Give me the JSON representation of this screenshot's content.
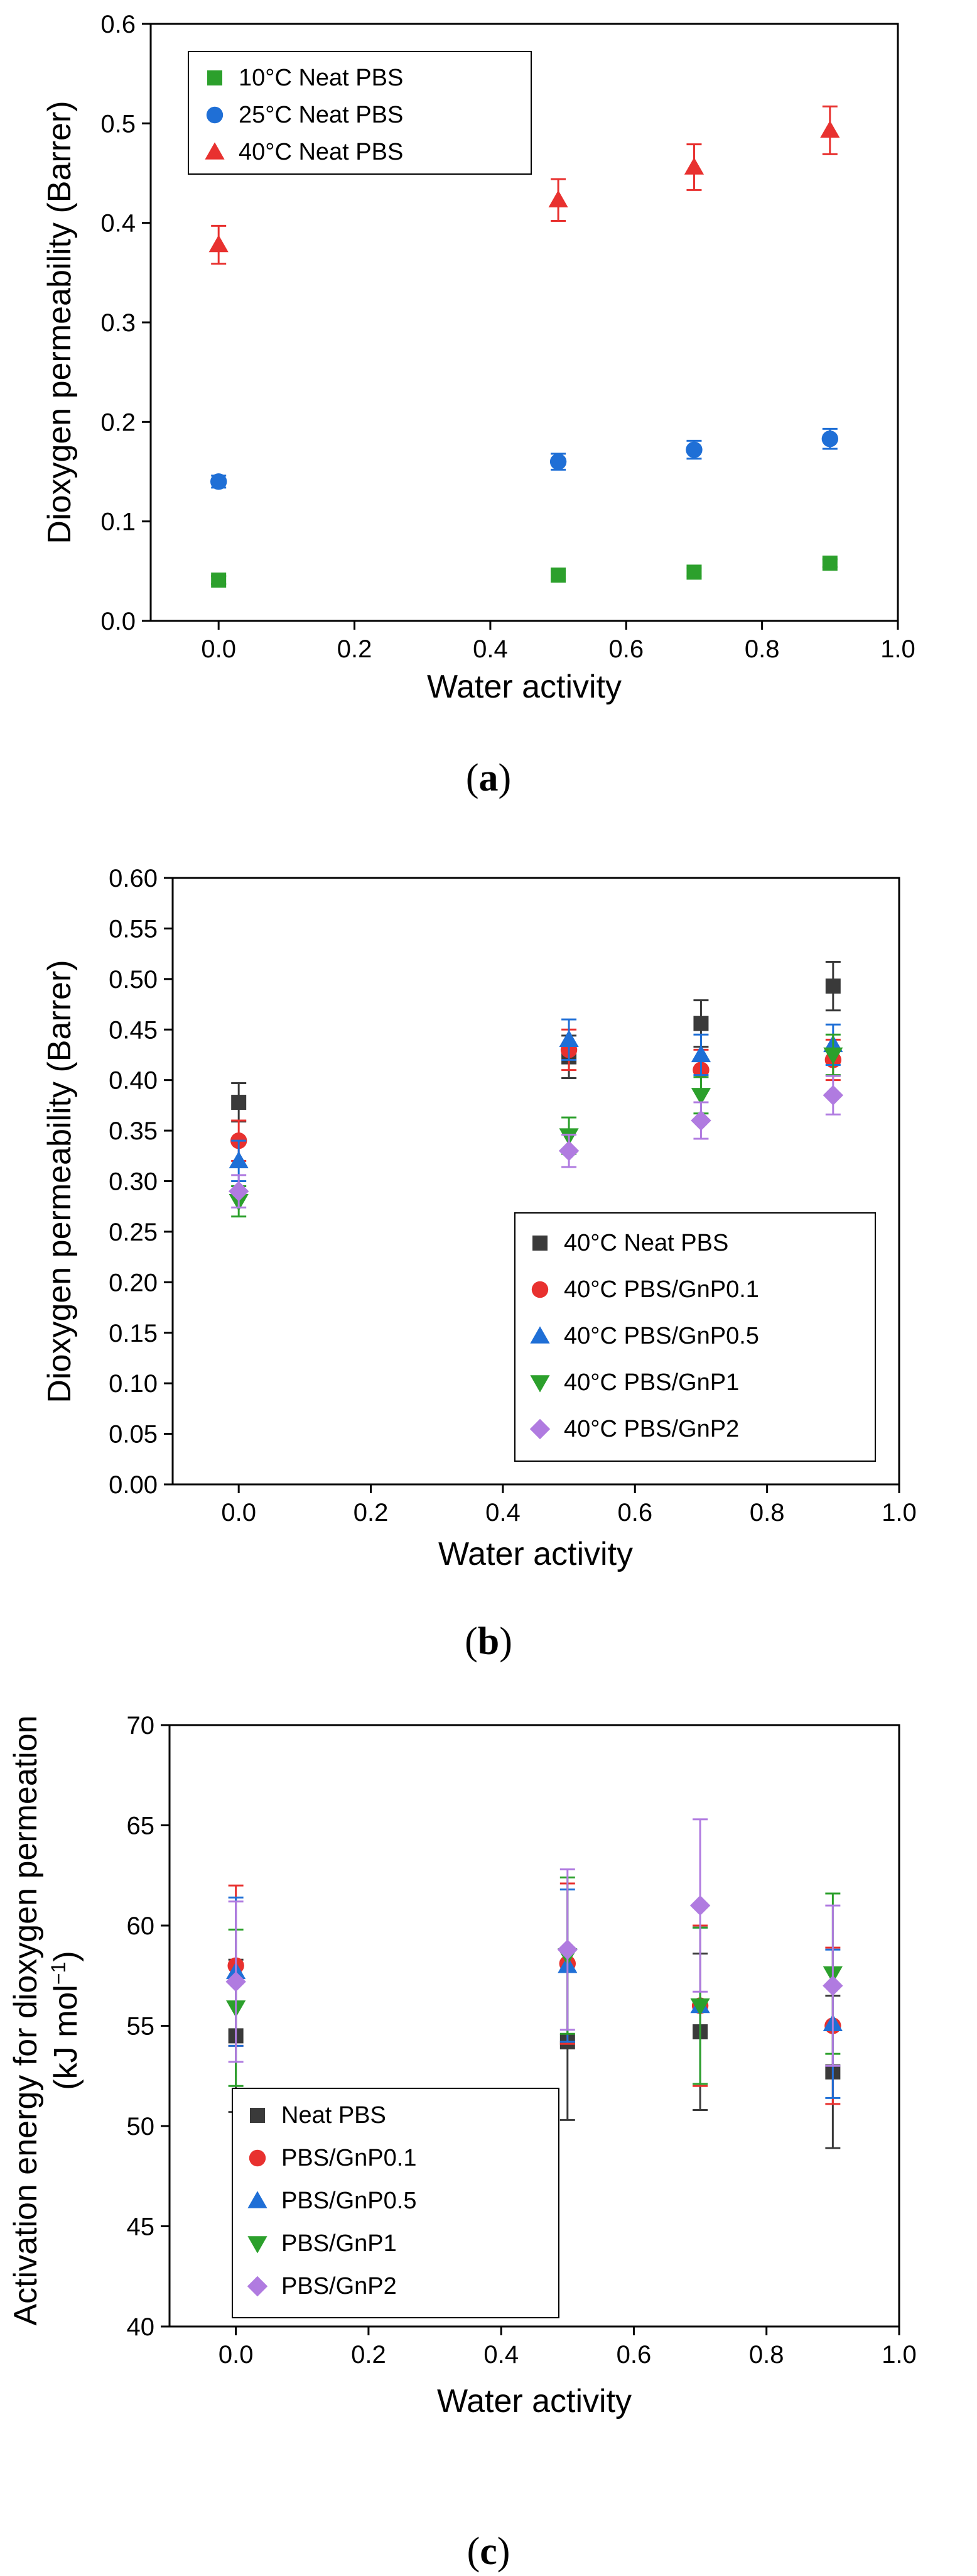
{
  "chart_data": [
    {
      "id": "a",
      "type": "scatter",
      "caption": "a",
      "xlabel": "Water activity",
      "ylabel": "Dioxygen permeability (Barrer)",
      "xlim": [
        -0.1,
        1.0
      ],
      "ylim": [
        0.0,
        0.6
      ],
      "xticks": [
        0.0,
        0.2,
        0.4,
        0.6,
        0.8,
        1.0
      ],
      "yticks": [
        0.0,
        0.1,
        0.2,
        0.3,
        0.4,
        0.5,
        0.6
      ],
      "xtick_labels": [
        "0.0",
        "0.2",
        "0.4",
        "0.6",
        "0.8",
        "1.0"
      ],
      "ytick_labels": [
        "0.0",
        "0.1",
        "0.2",
        "0.3",
        "0.4",
        "0.5",
        "0.6"
      ],
      "legend": "top-left",
      "series": [
        {
          "name": "10°C Neat PBS",
          "color": "#2ca02c",
          "marker": "square",
          "x": [
            0,
            0.5,
            0.7,
            0.9
          ],
          "y": [
            0.041,
            0.046,
            0.049,
            0.058
          ],
          "err": [
            0.004,
            0.004,
            0.004,
            0.004
          ]
        },
        {
          "name": "25°C Neat PBS",
          "color": "#1f6fd6",
          "marker": "circle",
          "x": [
            0,
            0.5,
            0.7,
            0.9
          ],
          "y": [
            0.14,
            0.16,
            0.172,
            0.183
          ],
          "err": [
            0.006,
            0.008,
            0.009,
            0.01
          ]
        },
        {
          "name": "40°C Neat PBS",
          "color": "#e8312f",
          "marker": "triangle-up",
          "x": [
            0,
            0.5,
            0.7,
            0.9
          ],
          "y": [
            0.378,
            0.423,
            0.456,
            0.493
          ],
          "err": [
            0.019,
            0.021,
            0.023,
            0.024
          ]
        }
      ]
    },
    {
      "id": "b",
      "type": "scatter",
      "caption": "b",
      "xlabel": "Water activity",
      "ylabel": "Dioxygen permeability (Barrer)",
      "xlim": [
        -0.1,
        1.0
      ],
      "ylim": [
        0.0,
        0.6
      ],
      "xticks": [
        0.0,
        0.2,
        0.4,
        0.6,
        0.8,
        1.0
      ],
      "yticks": [
        0.0,
        0.05,
        0.1,
        0.15,
        0.2,
        0.25,
        0.3,
        0.35,
        0.4,
        0.45,
        0.5,
        0.55,
        0.6
      ],
      "xtick_labels": [
        "0.0",
        "0.2",
        "0.4",
        "0.6",
        "0.8",
        "1.0"
      ],
      "ytick_labels": [
        "0.00",
        "0.05",
        "0.10",
        "0.15",
        "0.20",
        "0.25",
        "0.30",
        "0.35",
        "0.40",
        "0.45",
        "0.50",
        "0.55",
        "0.60"
      ],
      "legend": "bottom-right",
      "series": [
        {
          "name": "40°C Neat PBS",
          "color": "#3a3a3a",
          "marker": "square",
          "x": [
            0,
            0.5,
            0.7,
            0.9
          ],
          "y": [
            0.378,
            0.423,
            0.456,
            0.493
          ],
          "err": [
            0.019,
            0.021,
            0.023,
            0.024
          ]
        },
        {
          "name": "40°C PBS/GnP0.1",
          "color": "#e8312f",
          "marker": "circle",
          "x": [
            0,
            0.5,
            0.7,
            0.9
          ],
          "y": [
            0.34,
            0.43,
            0.41,
            0.42
          ],
          "err": [
            0.02,
            0.02,
            0.02,
            0.02
          ]
        },
        {
          "name": "40°C PBS/GnP0.5",
          "color": "#1f6fd6",
          "marker": "triangle-up",
          "x": [
            0,
            0.5,
            0.7,
            0.9
          ],
          "y": [
            0.32,
            0.44,
            0.425,
            0.435
          ],
          "err": [
            0.02,
            0.02,
            0.02,
            0.02
          ]
        },
        {
          "name": "40°C PBS/GnP1",
          "color": "#2ca02c",
          "marker": "triangle-down",
          "x": [
            0,
            0.5,
            0.7,
            0.9
          ],
          "y": [
            0.28,
            0.345,
            0.385,
            0.425
          ],
          "err": [
            0.015,
            0.018,
            0.018,
            0.02
          ]
        },
        {
          "name": "40°C PBS/GnP2",
          "color": "#b07be0",
          "marker": "diamond",
          "x": [
            0,
            0.5,
            0.7,
            0.9
          ],
          "y": [
            0.29,
            0.33,
            0.36,
            0.385
          ],
          "err": [
            0.016,
            0.016,
            0.018,
            0.019
          ]
        }
      ]
    },
    {
      "id": "c",
      "type": "scatter",
      "caption": "c",
      "xlabel": "Water activity",
      "ylabel_line1": "Activation energy for dioxygen permeation",
      "ylabel_line2": "(kJ mol",
      "ylabel_sup": "−1",
      "ylabel_close": ")",
      "xlim": [
        -0.1,
        1.0
      ],
      "ylim": [
        40,
        70
      ],
      "xticks": [
        0.0,
        0.2,
        0.4,
        0.6,
        0.8,
        1.0
      ],
      "yticks": [
        40,
        45,
        50,
        55,
        60,
        65,
        70
      ],
      "xtick_labels": [
        "0.0",
        "0.2",
        "0.4",
        "0.6",
        "0.8",
        "1.0"
      ],
      "ytick_labels": [
        "40",
        "45",
        "50",
        "55",
        "60",
        "65",
        "70"
      ],
      "legend": "bottom-left",
      "series": [
        {
          "name": "Neat PBS",
          "color": "#3a3a3a",
          "marker": "square",
          "x": [
            0,
            0.5,
            0.7,
            0.9
          ],
          "y": [
            54.5,
            54.2,
            54.7,
            52.7
          ],
          "err": [
            3.8,
            3.9,
            3.9,
            3.8
          ]
        },
        {
          "name": "PBS/GnP0.1",
          "color": "#e8312f",
          "marker": "circle",
          "x": [
            0,
            0.5,
            0.7,
            0.9
          ],
          "y": [
            58.0,
            58.1,
            56.0,
            55.0
          ],
          "err": [
            4.0,
            4.0,
            4.0,
            3.9
          ]
        },
        {
          "name": "PBS/GnP0.5",
          "color": "#1f6fd6",
          "marker": "triangle-up",
          "x": [
            0,
            0.5,
            0.7,
            0.9
          ],
          "y": [
            57.7,
            58.0,
            56.0,
            55.1
          ],
          "err": [
            3.7,
            3.8,
            3.9,
            3.7
          ]
        },
        {
          "name": "PBS/GnP1",
          "color": "#2ca02c",
          "marker": "triangle-down",
          "x": [
            0,
            0.5,
            0.7,
            0.9
          ],
          "y": [
            55.9,
            58.5,
            56.0,
            57.6
          ],
          "err": [
            3.9,
            3.9,
            3.9,
            4.0
          ]
        },
        {
          "name": "PBS/GnP2",
          "color": "#b07be0",
          "marker": "diamond",
          "x": [
            0,
            0.5,
            0.7,
            0.9
          ],
          "y": [
            57.2,
            58.8,
            61.0,
            57.0
          ],
          "err": [
            4.0,
            4.0,
            4.3,
            4.0
          ]
        }
      ]
    }
  ]
}
